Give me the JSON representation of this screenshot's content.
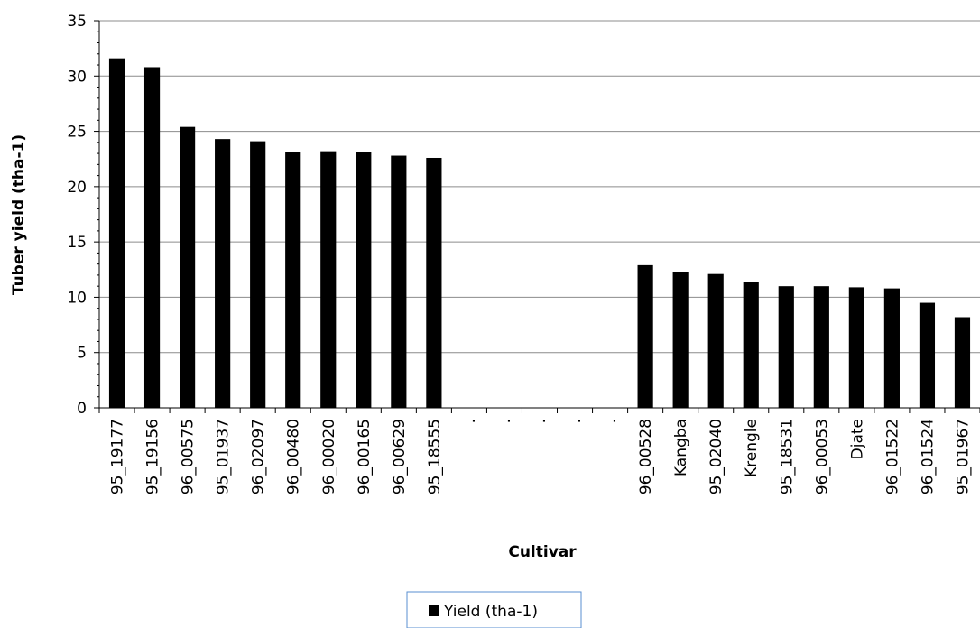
{
  "chart_data": {
    "type": "bar",
    "xlabel": "Cultivar",
    "ylabel": "Tuber yield (tha-1)",
    "ylim": [
      0,
      35
    ],
    "yticks": [
      0,
      5,
      10,
      15,
      20,
      25,
      30,
      35
    ],
    "grid": true,
    "legend_position": "bottom",
    "categories": [
      "95_19177",
      "95_19156",
      "96_00575",
      "95_01937",
      "96_02097",
      "96_00480",
      "96_00020",
      "96_00165",
      "96_00629",
      "95_18555",
      ".",
      ".",
      ".",
      ".",
      ".",
      "96_00528",
      "Kangba",
      "95_02040",
      "Krengle",
      "95_18531",
      "96_00053",
      "Djate",
      "96_01522",
      "96_01524",
      "95_01967"
    ],
    "series": [
      {
        "name": "Yield (tha-1)",
        "color": "#000000",
        "values": [
          31.6,
          30.8,
          25.4,
          24.3,
          24.1,
          23.1,
          23.2,
          23.1,
          22.8,
          22.6,
          null,
          null,
          null,
          null,
          null,
          12.9,
          12.3,
          12.1,
          11.4,
          11.0,
          11.0,
          10.9,
          10.8,
          9.5,
          8.2
        ]
      }
    ]
  }
}
